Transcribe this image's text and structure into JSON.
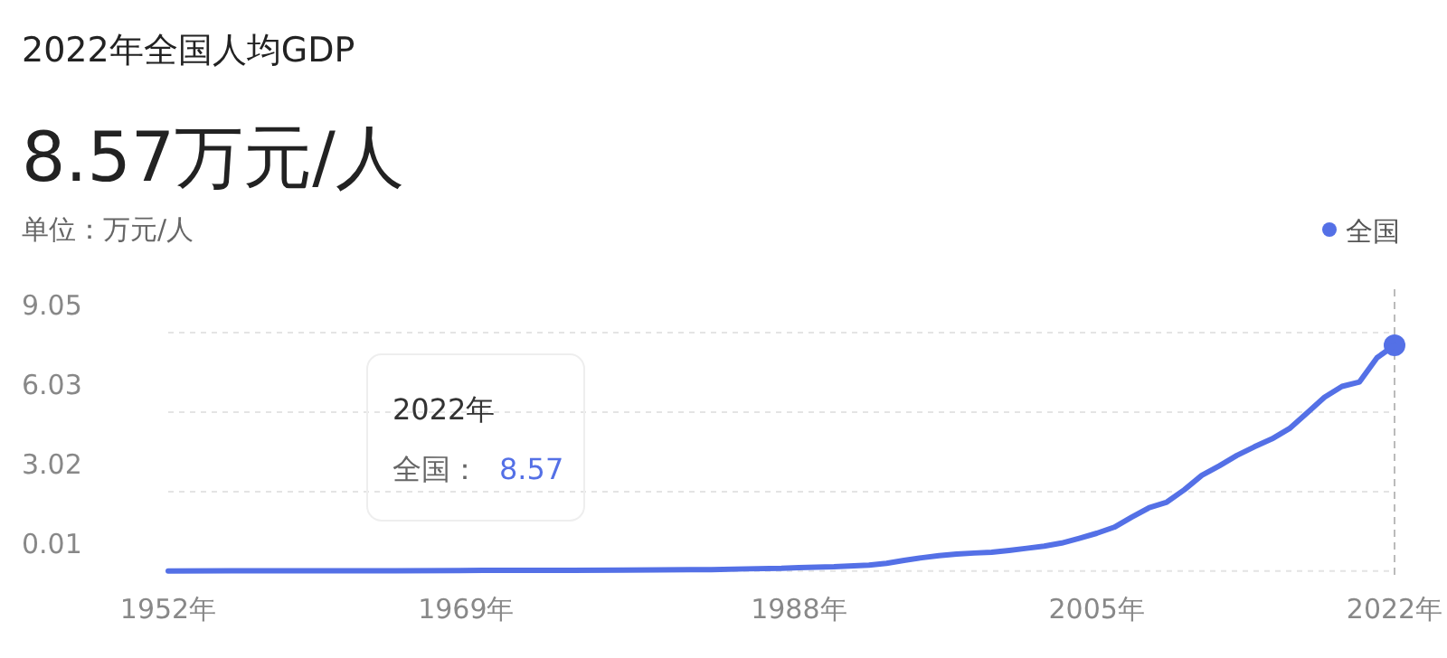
{
  "chart_data": {
    "type": "line",
    "title": "2022年全国人均GDP",
    "subtitle": "8.57万元/人",
    "ylabel": "单位：万元/人",
    "x": [
      1952,
      1957,
      1962,
      1965,
      1970,
      1975,
      1978,
      1980,
      1983,
      1985,
      1987,
      1988,
      1990,
      1992,
      1993,
      1994,
      1995,
      1996,
      1997,
      1998,
      1999,
      2000,
      2001,
      2002,
      2003,
      2004,
      2005,
      2006,
      2007,
      2008,
      2009,
      2010,
      2011,
      2012,
      2013,
      2014,
      2015,
      2016,
      2017,
      2018,
      2019,
      2020,
      2021,
      2022
    ],
    "series": [
      {
        "name": "全国",
        "color": "#5470e6",
        "values": [
          0.01,
          0.02,
          0.02,
          0.02,
          0.03,
          0.03,
          0.04,
          0.05,
          0.06,
          0.09,
          0.11,
          0.14,
          0.17,
          0.23,
          0.3,
          0.41,
          0.51,
          0.59,
          0.65,
          0.69,
          0.72,
          0.79,
          0.87,
          0.95,
          1.07,
          1.25,
          1.44,
          1.67,
          2.05,
          2.41,
          2.62,
          3.09,
          3.64,
          4.0,
          4.39,
          4.72,
          5.02,
          5.41,
          6.0,
          6.6,
          7.01,
          7.18,
          8.1,
          8.57
        ]
      }
    ],
    "xlim": [
      1952,
      2022
    ],
    "xticks": [
      {
        "value": 1952,
        "label": "1952年"
      },
      {
        "value": 1969,
        "label": "1969年"
      },
      {
        "value": 1988,
        "label": "1988年"
      },
      {
        "value": 2005,
        "label": "2005年"
      },
      {
        "value": 2022,
        "label": "2022年"
      }
    ],
    "ylim": [
      0,
      9.05
    ],
    "yticks": [
      0.01,
      3.02,
      6.03,
      9.05
    ],
    "grid": "y",
    "legend": "top right",
    "marker": "none",
    "line_style": "solid",
    "ref_lines": [
      {
        "axis": "x",
        "value": 2022,
        "color": "#bbbbbb",
        "line_style": "dashed"
      }
    ],
    "annotations": [
      "2022年",
      "全国：",
      "8.57"
    ]
  }
}
